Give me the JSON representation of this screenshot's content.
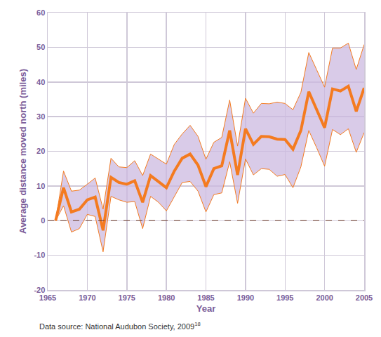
{
  "chart_data": {
    "type": "line",
    "x_label": "Year",
    "y_label": "Average distance moved north (miles)",
    "note": {
      "text": "Data source: National Audubon Society, 2009",
      "superscript": "18"
    },
    "x": [
      1966,
      1967,
      1968,
      1969,
      1970,
      1971,
      1972,
      1973,
      1974,
      1975,
      1976,
      1977,
      1978,
      1979,
      1980,
      1981,
      1982,
      1983,
      1984,
      1985,
      1986,
      1987,
      1988,
      1989,
      1990,
      1991,
      1992,
      1993,
      1994,
      1995,
      1996,
      1997,
      1998,
      1999,
      2000,
      2001,
      2002,
      2003,
      2004,
      2005
    ],
    "series": [
      {
        "color": "#f47b20",
        "values": [
          0,
          9.5,
          2.5,
          3.3,
          6,
          6.8,
          -2.8,
          12.5,
          11,
          10.5,
          11.5,
          5.3,
          13,
          11.3,
          9.5,
          14.3,
          18,
          19.2,
          16,
          9.8,
          15,
          15.8,
          26,
          13.2,
          26.5,
          22,
          24.3,
          24.2,
          23.5,
          23.4,
          20.6,
          26,
          37.2,
          32,
          26.8,
          38,
          37.4,
          38.8,
          31.5,
          38.3
        ],
        "upper": [
          0,
          14.3,
          8.5,
          8.8,
          10.5,
          12.3,
          3.3,
          18,
          15.5,
          15.3,
          17.3,
          13,
          19.2,
          17.8,
          16.3,
          22,
          25,
          27.5,
          24.3,
          17.7,
          22.6,
          24,
          34.8,
          21.5,
          35.3,
          31,
          33.8,
          33.7,
          34.2,
          33.8,
          32,
          37,
          48.5,
          43.5,
          38.5,
          49.8,
          49.8,
          51.2,
          43.6,
          50.8
        ],
        "lower": [
          0,
          4.3,
          -3.3,
          -2.3,
          1.8,
          1.2,
          -9,
          7,
          6,
          5.3,
          5.5,
          -2.3,
          7,
          5.3,
          2.8,
          6.8,
          11,
          11.3,
          8.5,
          2.5,
          7.5,
          8,
          17,
          5,
          17.8,
          13.2,
          15,
          14.8,
          12.8,
          13.3,
          9.5,
          15.5,
          26,
          21,
          15.7,
          26.3,
          24.8,
          26.5,
          19.7,
          25.4
        ]
      }
    ],
    "reference_line": {
      "value": 0,
      "line_style": "dashed"
    },
    "xlim": [
      1965,
      2005
    ],
    "xticks": [
      1965,
      1970,
      1975,
      1980,
      1985,
      1990,
      1995,
      2000,
      2005
    ],
    "ylim": [
      -20,
      60
    ],
    "yticks": [
      -20,
      -10,
      0,
      10,
      20,
      30,
      40,
      50,
      60
    ],
    "grid": true
  }
}
